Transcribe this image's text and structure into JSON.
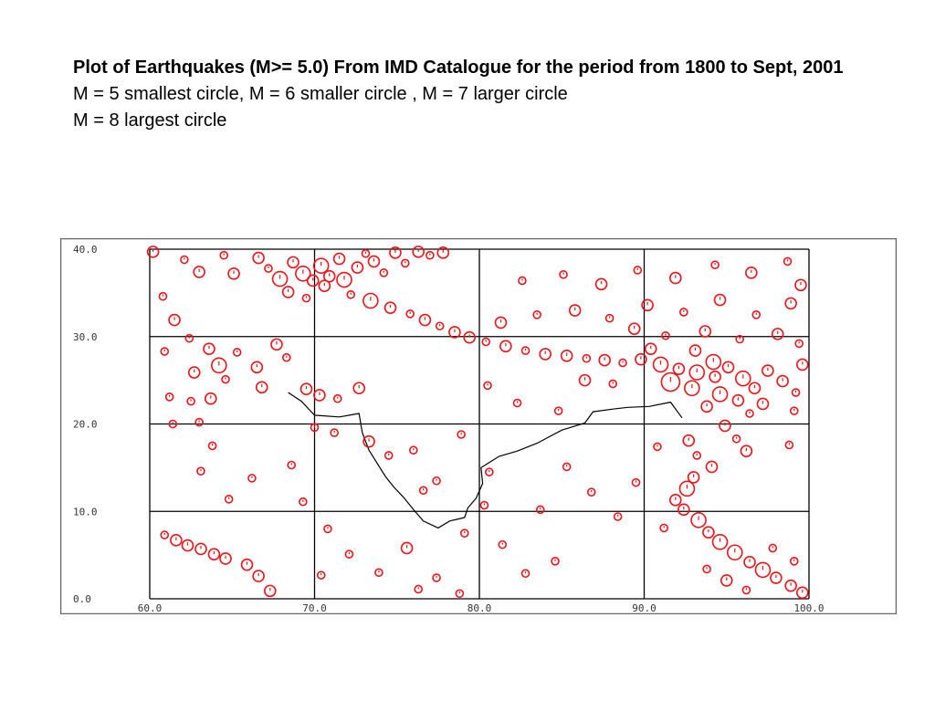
{
  "caption": {
    "title": "Plot of Earthquakes (M>= 5.0) From IMD Catalogue for the period from 1800 to Sept, 2001",
    "line1": "M = 5 smallest circle,  M = 6 smaller circle , M = 7 larger circle",
    "line2": "M = 8 largest circle"
  },
  "colors": {
    "event": "#e8141a",
    "grid": "#000000",
    "coast": "#000000",
    "frame": "#666666"
  },
  "map": {
    "x_ticks": [
      {
        "value": 60,
        "label": "60.0"
      },
      {
        "value": 70,
        "label": "70.0"
      },
      {
        "value": 80,
        "label": "80.0"
      },
      {
        "value": 90,
        "label": "90.0"
      },
      {
        "value": 100,
        "label": "100.0"
      }
    ],
    "y_ticks": [
      {
        "value": 0,
        "label": "0.0"
      },
      {
        "value": 10,
        "label": "10.0"
      },
      {
        "value": 20,
        "label": "20.0"
      },
      {
        "value": 30,
        "label": "30.0"
      },
      {
        "value": 40,
        "label": "40.0"
      }
    ],
    "lon_range": [
      60,
      100
    ],
    "lat_range": [
      0,
      40
    ],
    "grid": true,
    "coast": [
      [
        68.4,
        23.6
      ],
      [
        69.2,
        22.6
      ],
      [
        70.0,
        21.0
      ],
      [
        71.5,
        20.8
      ],
      [
        72.7,
        21.2
      ],
      [
        72.9,
        19.0
      ],
      [
        73.3,
        17.0
      ],
      [
        73.8,
        15.5
      ],
      [
        74.3,
        14.0
      ],
      [
        74.8,
        12.8
      ],
      [
        75.4,
        11.6
      ],
      [
        76.0,
        10.2
      ],
      [
        76.6,
        8.9
      ],
      [
        77.5,
        8.1
      ],
      [
        78.2,
        8.9
      ],
      [
        79.1,
        9.3
      ],
      [
        79.3,
        10.4
      ],
      [
        79.8,
        11.5
      ],
      [
        80.2,
        13.2
      ],
      [
        80.1,
        15.0
      ],
      [
        81.2,
        16.3
      ],
      [
        82.3,
        16.9
      ],
      [
        83.5,
        17.8
      ],
      [
        85.0,
        19.3
      ],
      [
        86.4,
        20.1
      ],
      [
        86.9,
        21.4
      ],
      [
        88.1,
        21.7
      ],
      [
        89.0,
        21.9
      ],
      [
        90.3,
        22.0
      ],
      [
        91.6,
        22.5
      ],
      [
        92.3,
        20.7
      ]
    ],
    "events": [
      {
        "lon": 60.2,
        "lat": 39.7,
        "mag": 6
      },
      {
        "lon": 62.1,
        "lat": 38.8,
        "mag": 5
      },
      {
        "lon": 63.0,
        "lat": 37.4,
        "mag": 6
      },
      {
        "lon": 64.5,
        "lat": 39.3,
        "mag": 5
      },
      {
        "lon": 65.1,
        "lat": 37.2,
        "mag": 6
      },
      {
        "lon": 66.6,
        "lat": 39.0,
        "mag": 6
      },
      {
        "lon": 67.2,
        "lat": 37.8,
        "mag": 5
      },
      {
        "lon": 67.9,
        "lat": 36.6,
        "mag": 7
      },
      {
        "lon": 68.7,
        "lat": 38.5,
        "mag": 6
      },
      {
        "lon": 69.3,
        "lat": 37.2,
        "mag": 7
      },
      {
        "lon": 69.9,
        "lat": 36.4,
        "mag": 6
      },
      {
        "lon": 70.4,
        "lat": 38.1,
        "mag": 7
      },
      {
        "lon": 70.9,
        "lat": 36.9,
        "mag": 6
      },
      {
        "lon": 71.5,
        "lat": 38.9,
        "mag": 6
      },
      {
        "lon": 71.8,
        "lat": 36.5,
        "mag": 7
      },
      {
        "lon": 72.6,
        "lat": 37.9,
        "mag": 6
      },
      {
        "lon": 73.1,
        "lat": 39.5,
        "mag": 5
      },
      {
        "lon": 73.6,
        "lat": 38.6,
        "mag": 6
      },
      {
        "lon": 74.2,
        "lat": 37.3,
        "mag": 5
      },
      {
        "lon": 74.9,
        "lat": 39.6,
        "mag": 6
      },
      {
        "lon": 75.5,
        "lat": 38.4,
        "mag": 5
      },
      {
        "lon": 76.3,
        "lat": 39.7,
        "mag": 6
      },
      {
        "lon": 77.0,
        "lat": 39.3,
        "mag": 5
      },
      {
        "lon": 77.8,
        "lat": 39.6,
        "mag": 6
      },
      {
        "lon": 68.4,
        "lat": 35.1,
        "mag": 6
      },
      {
        "lon": 69.5,
        "lat": 34.4,
        "mag": 5
      },
      {
        "lon": 70.6,
        "lat": 35.8,
        "mag": 6
      },
      {
        "lon": 72.2,
        "lat": 34.8,
        "mag": 5
      },
      {
        "lon": 73.4,
        "lat": 34.1,
        "mag": 7
      },
      {
        "lon": 74.6,
        "lat": 33.3,
        "mag": 6
      },
      {
        "lon": 75.8,
        "lat": 32.6,
        "mag": 5
      },
      {
        "lon": 76.7,
        "lat": 31.9,
        "mag": 6
      },
      {
        "lon": 77.6,
        "lat": 31.2,
        "mag": 5
      },
      {
        "lon": 78.5,
        "lat": 30.5,
        "mag": 6
      },
      {
        "lon": 79.4,
        "lat": 29.9,
        "mag": 6
      },
      {
        "lon": 80.4,
        "lat": 29.4,
        "mag": 5
      },
      {
        "lon": 81.6,
        "lat": 28.9,
        "mag": 6
      },
      {
        "lon": 82.8,
        "lat": 28.4,
        "mag": 5
      },
      {
        "lon": 84.0,
        "lat": 28.0,
        "mag": 6
      },
      {
        "lon": 85.3,
        "lat": 27.8,
        "mag": 6
      },
      {
        "lon": 86.5,
        "lat": 27.5,
        "mag": 5
      },
      {
        "lon": 87.6,
        "lat": 27.3,
        "mag": 6
      },
      {
        "lon": 88.7,
        "lat": 27.0,
        "mag": 5
      },
      {
        "lon": 89.8,
        "lat": 27.4,
        "mag": 6
      },
      {
        "lon": 91.0,
        "lat": 26.8,
        "mag": 7
      },
      {
        "lon": 92.1,
        "lat": 26.3,
        "mag": 6
      },
      {
        "lon": 93.2,
        "lat": 25.9,
        "mag": 7
      },
      {
        "lon": 94.3,
        "lat": 25.4,
        "mag": 6
      },
      {
        "lon": 95.1,
        "lat": 26.5,
        "mag": 6
      },
      {
        "lon": 96.0,
        "lat": 25.2,
        "mag": 7
      },
      {
        "lon": 96.7,
        "lat": 24.1,
        "mag": 6
      },
      {
        "lon": 97.5,
        "lat": 26.1,
        "mag": 6
      },
      {
        "lon": 98.4,
        "lat": 24.9,
        "mag": 6
      },
      {
        "lon": 99.2,
        "lat": 23.6,
        "mag": 5
      },
      {
        "lon": 99.6,
        "lat": 26.8,
        "mag": 6
      },
      {
        "lon": 95.7,
        "lat": 22.7,
        "mag": 6
      },
      {
        "lon": 96.4,
        "lat": 21.2,
        "mag": 5
      },
      {
        "lon": 97.2,
        "lat": 22.3,
        "mag": 6
      },
      {
        "lon": 94.6,
        "lat": 23.4,
        "mag": 7
      },
      {
        "lon": 93.8,
        "lat": 22.0,
        "mag": 6
      },
      {
        "lon": 94.9,
        "lat": 19.8,
        "mag": 6
      },
      {
        "lon": 95.6,
        "lat": 18.3,
        "mag": 5
      },
      {
        "lon": 96.2,
        "lat": 16.9,
        "mag": 6
      },
      {
        "lon": 99.1,
        "lat": 21.5,
        "mag": 5
      },
      {
        "lon": 98.8,
        "lat": 17.6,
        "mag": 5
      },
      {
        "lon": 81.3,
        "lat": 31.6,
        "mag": 6
      },
      {
        "lon": 83.5,
        "lat": 32.5,
        "mag": 5
      },
      {
        "lon": 85.8,
        "lat": 33.0,
        "mag": 6
      },
      {
        "lon": 87.9,
        "lat": 32.1,
        "mag": 5
      },
      {
        "lon": 90.2,
        "lat": 33.6,
        "mag": 6
      },
      {
        "lon": 92.4,
        "lat": 32.8,
        "mag": 5
      },
      {
        "lon": 94.6,
        "lat": 34.2,
        "mag": 6
      },
      {
        "lon": 96.8,
        "lat": 32.5,
        "mag": 5
      },
      {
        "lon": 98.9,
        "lat": 33.8,
        "mag": 6
      },
      {
        "lon": 82.6,
        "lat": 36.4,
        "mag": 5
      },
      {
        "lon": 85.1,
        "lat": 37.1,
        "mag": 5
      },
      {
        "lon": 87.4,
        "lat": 36.0,
        "mag": 6
      },
      {
        "lon": 89.6,
        "lat": 37.6,
        "mag": 5
      },
      {
        "lon": 91.9,
        "lat": 36.7,
        "mag": 6
      },
      {
        "lon": 94.3,
        "lat": 38.2,
        "mag": 5
      },
      {
        "lon": 96.5,
        "lat": 37.3,
        "mag": 6
      },
      {
        "lon": 98.7,
        "lat": 38.6,
        "mag": 5
      },
      {
        "lon": 99.5,
        "lat": 35.9,
        "mag": 6
      },
      {
        "lon": 89.4,
        "lat": 30.9,
        "mag": 6
      },
      {
        "lon": 91.3,
        "lat": 30.1,
        "mag": 5
      },
      {
        "lon": 93.7,
        "lat": 30.6,
        "mag": 6
      },
      {
        "lon": 95.8,
        "lat": 29.7,
        "mag": 5
      },
      {
        "lon": 98.1,
        "lat": 30.3,
        "mag": 6
      },
      {
        "lon": 99.4,
        "lat": 29.2,
        "mag": 5
      },
      {
        "lon": 60.8,
        "lat": 34.6,
        "mag": 5
      },
      {
        "lon": 61.5,
        "lat": 31.9,
        "mag": 6
      },
      {
        "lon": 62.4,
        "lat": 29.8,
        "mag": 5
      },
      {
        "lon": 63.6,
        "lat": 28.6,
        "mag": 6
      },
      {
        "lon": 64.2,
        "lat": 26.7,
        "mag": 7
      },
      {
        "lon": 65.3,
        "lat": 28.2,
        "mag": 5
      },
      {
        "lon": 66.5,
        "lat": 26.5,
        "mag": 6
      },
      {
        "lon": 67.7,
        "lat": 29.1,
        "mag": 6
      },
      {
        "lon": 68.3,
        "lat": 27.6,
        "mag": 5
      },
      {
        "lon": 60.9,
        "lat": 28.3,
        "mag": 5
      },
      {
        "lon": 62.7,
        "lat": 25.9,
        "mag": 6
      },
      {
        "lon": 64.6,
        "lat": 25.1,
        "mag": 5
      },
      {
        "lon": 66.8,
        "lat": 24.2,
        "mag": 6
      },
      {
        "lon": 61.2,
        "lat": 23.1,
        "mag": 5
      },
      {
        "lon": 62.5,
        "lat": 22.6,
        "mag": 5
      },
      {
        "lon": 63.7,
        "lat": 22.9,
        "mag": 6
      },
      {
        "lon": 61.4,
        "lat": 20.0,
        "mag": 5
      },
      {
        "lon": 63.0,
        "lat": 20.2,
        "mag": 5
      },
      {
        "lon": 69.5,
        "lat": 24.0,
        "mag": 6
      },
      {
        "lon": 70.3,
        "lat": 23.3,
        "mag": 6
      },
      {
        "lon": 71.4,
        "lat": 22.9,
        "mag": 5
      },
      {
        "lon": 72.7,
        "lat": 24.1,
        "mag": 6
      },
      {
        "lon": 73.3,
        "lat": 18.0,
        "mag": 6
      },
      {
        "lon": 74.5,
        "lat": 16.4,
        "mag": 5
      },
      {
        "lon": 76.0,
        "lat": 17.0,
        "mag": 5
      },
      {
        "lon": 77.4,
        "lat": 13.5,
        "mag": 5
      },
      {
        "lon": 76.6,
        "lat": 12.4,
        "mag": 5
      },
      {
        "lon": 78.9,
        "lat": 18.8,
        "mag": 5
      },
      {
        "lon": 80.5,
        "lat": 24.4,
        "mag": 5
      },
      {
        "lon": 82.3,
        "lat": 22.4,
        "mag": 5
      },
      {
        "lon": 84.8,
        "lat": 21.5,
        "mag": 5
      },
      {
        "lon": 86.4,
        "lat": 25.0,
        "mag": 6
      },
      {
        "lon": 88.1,
        "lat": 24.6,
        "mag": 5
      },
      {
        "lon": 80.6,
        "lat": 14.5,
        "mag": 5
      },
      {
        "lon": 80.3,
        "lat": 10.7,
        "mag": 5
      },
      {
        "lon": 79.1,
        "lat": 7.5,
        "mag": 5
      },
      {
        "lon": 85.3,
        "lat": 15.1,
        "mag": 5
      },
      {
        "lon": 86.8,
        "lat": 12.2,
        "mag": 5
      },
      {
        "lon": 88.4,
        "lat": 9.4,
        "mag": 5
      },
      {
        "lon": 89.5,
        "lat": 13.3,
        "mag": 5
      },
      {
        "lon": 90.8,
        "lat": 17.4,
        "mag": 5
      },
      {
        "lon": 83.7,
        "lat": 10.2,
        "mag": 5
      },
      {
        "lon": 84.6,
        "lat": 4.3,
        "mag": 5
      },
      {
        "lon": 82.8,
        "lat": 2.9,
        "mag": 5
      },
      {
        "lon": 81.4,
        "lat": 6.2,
        "mag": 5
      },
      {
        "lon": 68.6,
        "lat": 15.3,
        "mag": 5
      },
      {
        "lon": 69.3,
        "lat": 11.1,
        "mag": 5
      },
      {
        "lon": 70.8,
        "lat": 8.0,
        "mag": 5
      },
      {
        "lon": 72.1,
        "lat": 5.1,
        "mag": 5
      },
      {
        "lon": 73.9,
        "lat": 3.0,
        "mag": 5
      },
      {
        "lon": 75.6,
        "lat": 5.8,
        "mag": 6
      },
      {
        "lon": 77.4,
        "lat": 2.4,
        "mag": 5
      },
      {
        "lon": 78.8,
        "lat": 0.6,
        "mag": 5
      },
      {
        "lon": 76.3,
        "lat": 1.1,
        "mag": 5
      },
      {
        "lon": 70.4,
        "lat": 2.7,
        "mag": 5
      },
      {
        "lon": 66.2,
        "lat": 13.8,
        "mag": 5
      },
      {
        "lon": 64.8,
        "lat": 11.4,
        "mag": 5
      },
      {
        "lon": 63.1,
        "lat": 14.6,
        "mag": 5
      },
      {
        "lon": 61.6,
        "lat": 6.7,
        "mag": 6
      },
      {
        "lon": 62.3,
        "lat": 6.1,
        "mag": 6
      },
      {
        "lon": 63.1,
        "lat": 5.7,
        "mag": 6
      },
      {
        "lon": 63.9,
        "lat": 5.1,
        "mag": 6
      },
      {
        "lon": 64.6,
        "lat": 4.6,
        "mag": 6
      },
      {
        "lon": 65.9,
        "lat": 3.9,
        "mag": 6
      },
      {
        "lon": 66.6,
        "lat": 2.6,
        "mag": 6
      },
      {
        "lon": 67.3,
        "lat": 0.9,
        "mag": 6
      },
      {
        "lon": 60.9,
        "lat": 7.3,
        "mag": 5
      },
      {
        "lon": 91.2,
        "lat": 8.1,
        "mag": 5
      },
      {
        "lon": 91.9,
        "lat": 11.3,
        "mag": 6
      },
      {
        "lon": 92.6,
        "lat": 12.6,
        "mag": 7
      },
      {
        "lon": 93.0,
        "lat": 13.9,
        "mag": 6
      },
      {
        "lon": 92.4,
        "lat": 10.2,
        "mag": 6
      },
      {
        "lon": 93.3,
        "lat": 9.0,
        "mag": 7
      },
      {
        "lon": 93.9,
        "lat": 7.6,
        "mag": 6
      },
      {
        "lon": 94.6,
        "lat": 6.5,
        "mag": 7
      },
      {
        "lon": 95.5,
        "lat": 5.3,
        "mag": 7
      },
      {
        "lon": 96.4,
        "lat": 4.2,
        "mag": 6
      },
      {
        "lon": 97.2,
        "lat": 3.3,
        "mag": 7
      },
      {
        "lon": 98.0,
        "lat": 2.4,
        "mag": 6
      },
      {
        "lon": 98.9,
        "lat": 1.5,
        "mag": 6
      },
      {
        "lon": 99.6,
        "lat": 0.7,
        "mag": 6
      },
      {
        "lon": 95.0,
        "lat": 2.1,
        "mag": 6
      },
      {
        "lon": 96.2,
        "lat": 1.0,
        "mag": 5
      },
      {
        "lon": 93.8,
        "lat": 3.4,
        "mag": 5
      },
      {
        "lon": 99.1,
        "lat": 4.3,
        "mag": 5
      },
      {
        "lon": 97.8,
        "lat": 5.8,
        "mag": 5
      },
      {
        "lon": 94.1,
        "lat": 15.1,
        "mag": 6
      },
      {
        "lon": 93.2,
        "lat": 16.4,
        "mag": 5
      },
      {
        "lon": 92.7,
        "lat": 18.1,
        "mag": 6
      },
      {
        "lon": 91.6,
        "lat": 24.8,
        "mag": 8
      },
      {
        "lon": 92.9,
        "lat": 24.1,
        "mag": 7
      },
      {
        "lon": 94.2,
        "lat": 27.1,
        "mag": 7
      },
      {
        "lon": 93.1,
        "lat": 28.4,
        "mag": 6
      },
      {
        "lon": 90.4,
        "lat": 28.6,
        "mag": 6
      },
      {
        "lon": 70.0,
        "lat": 19.6,
        "mag": 5
      },
      {
        "lon": 71.2,
        "lat": 19.0,
        "mag": 5
      },
      {
        "lon": 63.8,
        "lat": 17.5,
        "mag": 5
      }
    ]
  }
}
